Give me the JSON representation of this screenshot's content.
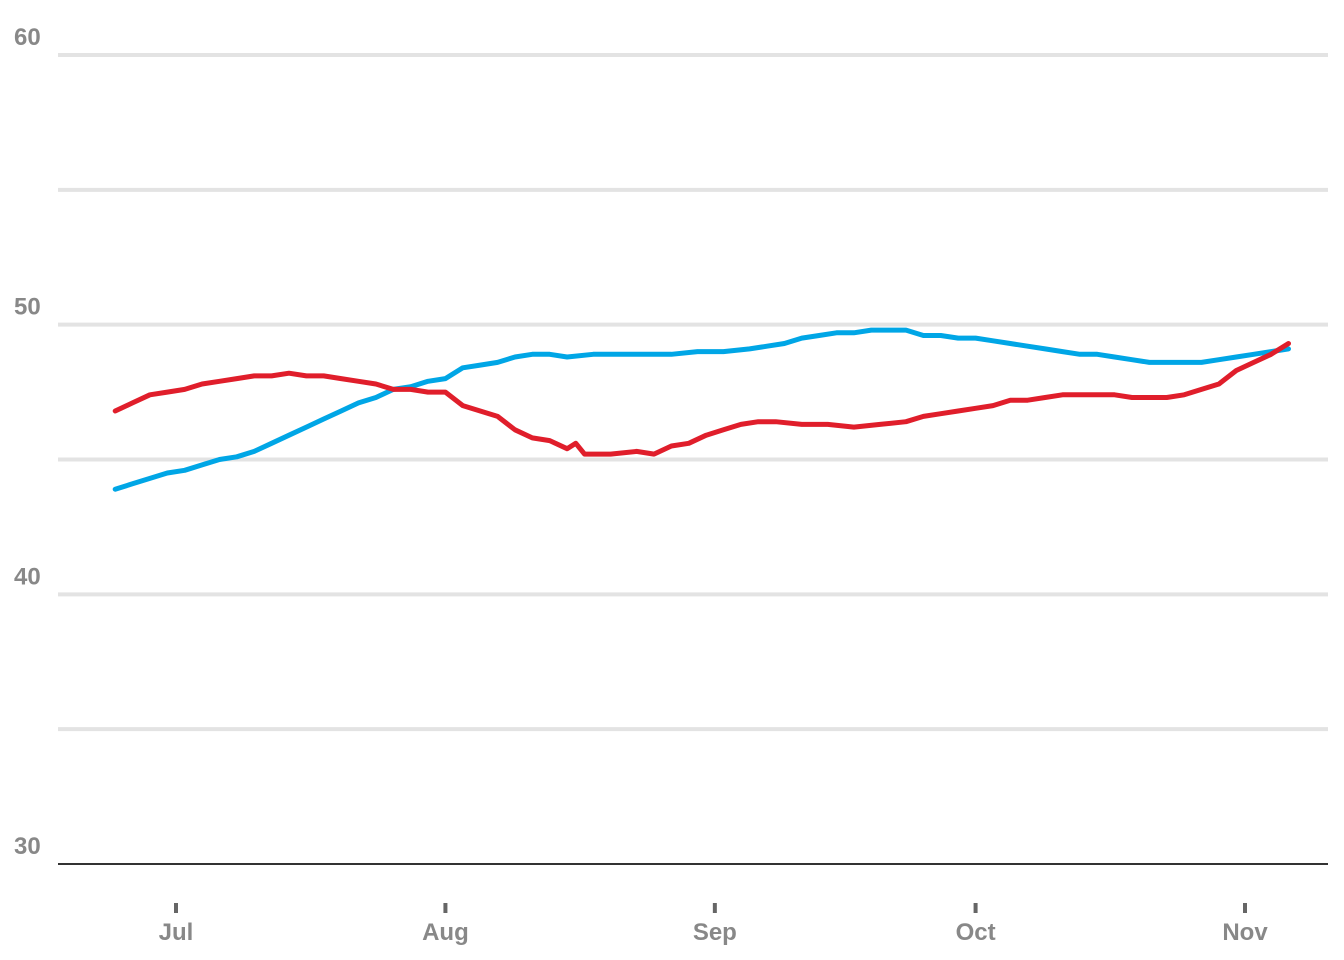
{
  "chart_data": {
    "type": "line",
    "title": "",
    "xlabel": "",
    "ylabel": "",
    "ylim": [
      30,
      60
    ],
    "xlim": [
      "2016-06-24",
      "2016-11-08"
    ],
    "y_ticks": [
      {
        "value": 60,
        "label": "60"
      },
      {
        "value": 55,
        "label": ""
      },
      {
        "value": 50,
        "label": "50"
      },
      {
        "value": 45,
        "label": ""
      },
      {
        "value": 40,
        "label": "40"
      },
      {
        "value": 35,
        "label": ""
      },
      {
        "value": 30,
        "label": "30"
      }
    ],
    "x_ticks": [
      {
        "date": "2016-07-01",
        "label": "Jul"
      },
      {
        "date": "2016-08-01",
        "label": "Aug"
      },
      {
        "date": "2016-09-01",
        "label": "Sep"
      },
      {
        "date": "2016-10-01",
        "label": "Oct"
      },
      {
        "date": "2016-11-01",
        "label": "Nov"
      }
    ],
    "grid": true,
    "legend": "none",
    "series": [
      {
        "color": "#00a6e6",
        "points": [
          [
            "2016-06-24",
            43.9
          ],
          [
            "2016-06-26",
            44.1
          ],
          [
            "2016-06-28",
            44.3
          ],
          [
            "2016-06-30",
            44.5
          ],
          [
            "2016-07-02",
            44.6
          ],
          [
            "2016-07-04",
            44.8
          ],
          [
            "2016-07-06",
            45.0
          ],
          [
            "2016-07-08",
            45.1
          ],
          [
            "2016-07-10",
            45.3
          ],
          [
            "2016-07-12",
            45.6
          ],
          [
            "2016-07-14",
            45.9
          ],
          [
            "2016-07-16",
            46.2
          ],
          [
            "2016-07-18",
            46.5
          ],
          [
            "2016-07-20",
            46.8
          ],
          [
            "2016-07-22",
            47.1
          ],
          [
            "2016-07-24",
            47.3
          ],
          [
            "2016-07-26",
            47.6
          ],
          [
            "2016-07-28",
            47.7
          ],
          [
            "2016-07-30",
            47.9
          ],
          [
            "2016-08-01",
            48.0
          ],
          [
            "2016-08-03",
            48.4
          ],
          [
            "2016-08-05",
            48.5
          ],
          [
            "2016-08-07",
            48.6
          ],
          [
            "2016-08-09",
            48.8
          ],
          [
            "2016-08-11",
            48.9
          ],
          [
            "2016-08-13",
            48.9
          ],
          [
            "2016-08-15",
            48.8
          ],
          [
            "2016-08-18",
            48.9
          ],
          [
            "2016-08-21",
            48.9
          ],
          [
            "2016-08-24",
            48.9
          ],
          [
            "2016-08-27",
            48.9
          ],
          [
            "2016-08-30",
            49.0
          ],
          [
            "2016-09-02",
            49.0
          ],
          [
            "2016-09-05",
            49.1
          ],
          [
            "2016-09-07",
            49.2
          ],
          [
            "2016-09-09",
            49.3
          ],
          [
            "2016-09-11",
            49.5
          ],
          [
            "2016-09-13",
            49.6
          ],
          [
            "2016-09-15",
            49.7
          ],
          [
            "2016-09-17",
            49.7
          ],
          [
            "2016-09-19",
            49.8
          ],
          [
            "2016-09-21",
            49.8
          ],
          [
            "2016-09-23",
            49.8
          ],
          [
            "2016-09-25",
            49.6
          ],
          [
            "2016-09-27",
            49.6
          ],
          [
            "2016-09-29",
            49.5
          ],
          [
            "2016-10-01",
            49.5
          ],
          [
            "2016-10-03",
            49.4
          ],
          [
            "2016-10-05",
            49.3
          ],
          [
            "2016-10-07",
            49.2
          ],
          [
            "2016-10-09",
            49.1
          ],
          [
            "2016-10-11",
            49.0
          ],
          [
            "2016-10-13",
            48.9
          ],
          [
            "2016-10-15",
            48.9
          ],
          [
            "2016-10-17",
            48.8
          ],
          [
            "2016-10-19",
            48.7
          ],
          [
            "2016-10-21",
            48.6
          ],
          [
            "2016-10-23",
            48.6
          ],
          [
            "2016-10-25",
            48.6
          ],
          [
            "2016-10-27",
            48.6
          ],
          [
            "2016-10-29",
            48.7
          ],
          [
            "2016-10-31",
            48.8
          ],
          [
            "2016-11-02",
            48.9
          ],
          [
            "2016-11-04",
            49.0
          ],
          [
            "2016-11-06",
            49.1
          ]
        ]
      },
      {
        "color": "#e01e2b",
        "points": [
          [
            "2016-06-24",
            46.8
          ],
          [
            "2016-06-26",
            47.1
          ],
          [
            "2016-06-28",
            47.4
          ],
          [
            "2016-06-30",
            47.5
          ],
          [
            "2016-07-02",
            47.6
          ],
          [
            "2016-07-04",
            47.8
          ],
          [
            "2016-07-06",
            47.9
          ],
          [
            "2016-07-08",
            48.0
          ],
          [
            "2016-07-10",
            48.1
          ],
          [
            "2016-07-12",
            48.1
          ],
          [
            "2016-07-14",
            48.2
          ],
          [
            "2016-07-16",
            48.1
          ],
          [
            "2016-07-18",
            48.1
          ],
          [
            "2016-07-20",
            48.0
          ],
          [
            "2016-07-22",
            47.9
          ],
          [
            "2016-07-24",
            47.8
          ],
          [
            "2016-07-26",
            47.6
          ],
          [
            "2016-07-28",
            47.6
          ],
          [
            "2016-07-30",
            47.5
          ],
          [
            "2016-08-01",
            47.5
          ],
          [
            "2016-08-03",
            47.0
          ],
          [
            "2016-08-05",
            46.8
          ],
          [
            "2016-08-07",
            46.6
          ],
          [
            "2016-08-09",
            46.1
          ],
          [
            "2016-08-11",
            45.8
          ],
          [
            "2016-08-13",
            45.7
          ],
          [
            "2016-08-15",
            45.4
          ],
          [
            "2016-08-16",
            45.6
          ],
          [
            "2016-08-17",
            45.2
          ],
          [
            "2016-08-20",
            45.2
          ],
          [
            "2016-08-23",
            45.3
          ],
          [
            "2016-08-25",
            45.2
          ],
          [
            "2016-08-27",
            45.5
          ],
          [
            "2016-08-29",
            45.6
          ],
          [
            "2016-08-31",
            45.9
          ],
          [
            "2016-09-02",
            46.1
          ],
          [
            "2016-09-04",
            46.3
          ],
          [
            "2016-09-06",
            46.4
          ],
          [
            "2016-09-08",
            46.4
          ],
          [
            "2016-09-11",
            46.3
          ],
          [
            "2016-09-14",
            46.3
          ],
          [
            "2016-09-17",
            46.2
          ],
          [
            "2016-09-20",
            46.3
          ],
          [
            "2016-09-23",
            46.4
          ],
          [
            "2016-09-25",
            46.6
          ],
          [
            "2016-09-27",
            46.7
          ],
          [
            "2016-09-29",
            46.8
          ],
          [
            "2016-10-01",
            46.9
          ],
          [
            "2016-10-03",
            47.0
          ],
          [
            "2016-10-05",
            47.2
          ],
          [
            "2016-10-07",
            47.2
          ],
          [
            "2016-10-09",
            47.3
          ],
          [
            "2016-10-11",
            47.4
          ],
          [
            "2016-10-13",
            47.4
          ],
          [
            "2016-10-15",
            47.4
          ],
          [
            "2016-10-17",
            47.4
          ],
          [
            "2016-10-19",
            47.3
          ],
          [
            "2016-10-21",
            47.3
          ],
          [
            "2016-10-23",
            47.3
          ],
          [
            "2016-10-25",
            47.4
          ],
          [
            "2016-10-27",
            47.6
          ],
          [
            "2016-10-29",
            47.8
          ],
          [
            "2016-10-31",
            48.3
          ],
          [
            "2016-11-02",
            48.6
          ],
          [
            "2016-11-04",
            48.9
          ],
          [
            "2016-11-06",
            49.3
          ]
        ]
      }
    ]
  }
}
